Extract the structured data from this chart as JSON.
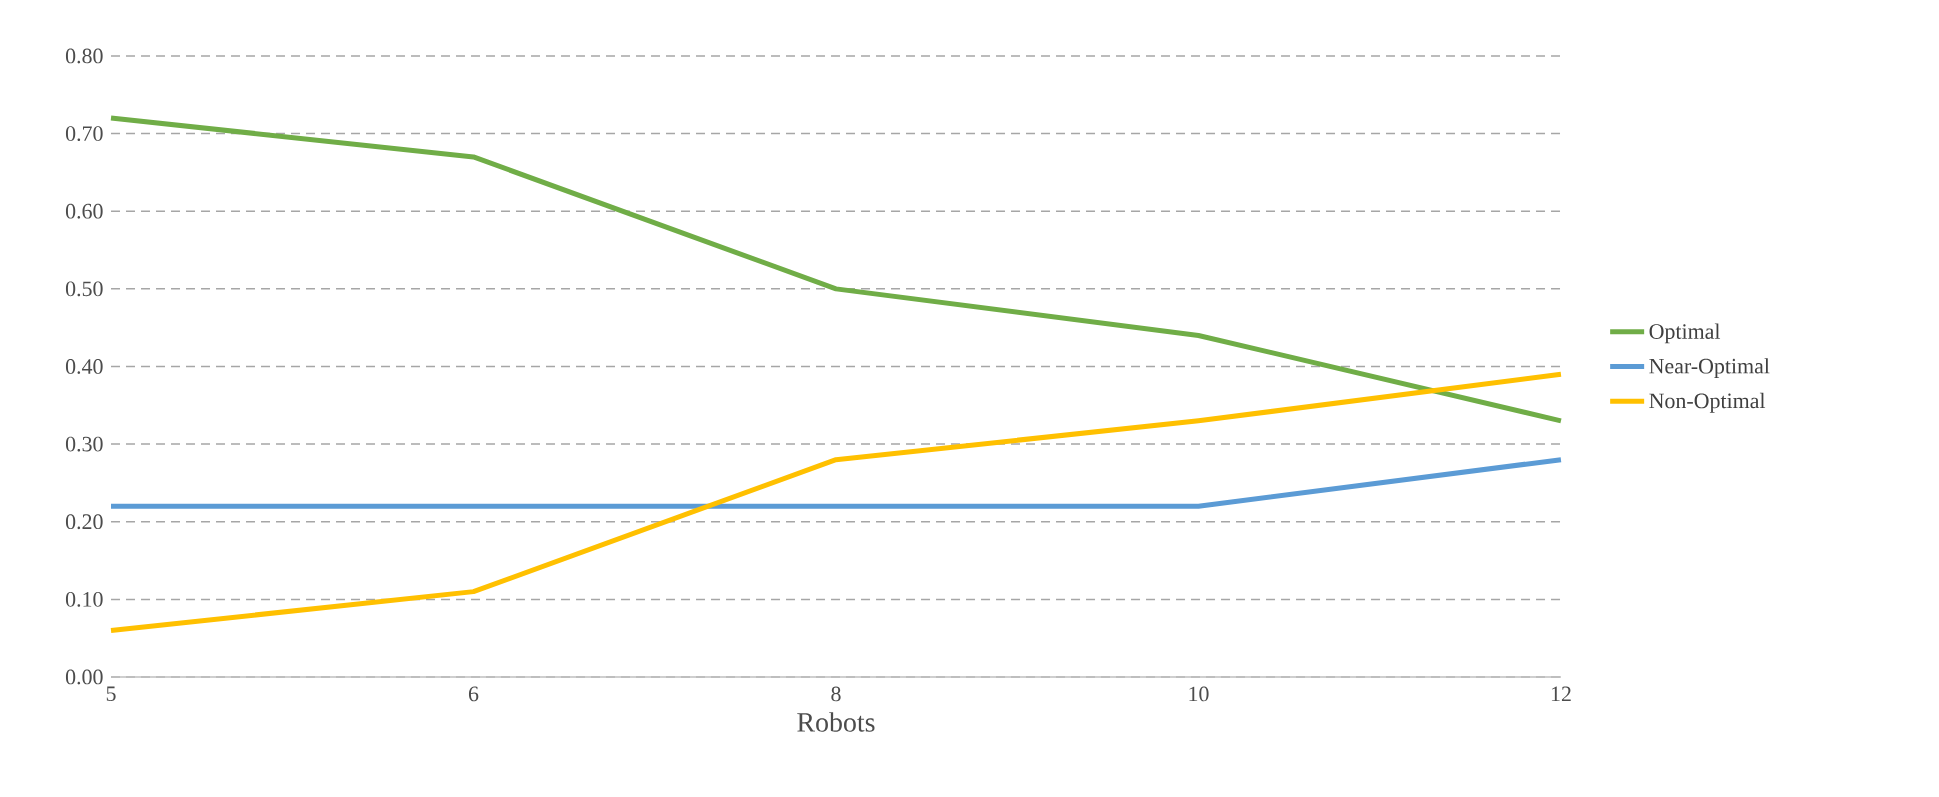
{
  "chart_data": {
    "type": "line",
    "xlabel": "Robots",
    "categories": [
      "5",
      "6",
      "8",
      "10",
      "12"
    ],
    "series": [
      {
        "name": "Optimal",
        "color": "#70ad47",
        "values": [
          0.72,
          0.67,
          0.5,
          0.44,
          0.33
        ]
      },
      {
        "name": "Near-Optimal",
        "color": "#5b9bd5",
        "values": [
          0.22,
          0.22,
          0.22,
          0.22,
          0.28
        ]
      },
      {
        "name": "Non-Optimal",
        "color": "#ffc000",
        "values": [
          0.06,
          0.11,
          0.28,
          0.33,
          0.39
        ]
      }
    ],
    "ylim": [
      0,
      0.8
    ],
    "yticks": [
      {
        "value": 0,
        "label": "0.00"
      },
      {
        "value": 0.1,
        "label": "0.10"
      },
      {
        "value": 0.2,
        "label": "0.20"
      },
      {
        "value": 0.3,
        "label": "0.30"
      },
      {
        "value": 0.4,
        "label": "0.40"
      },
      {
        "value": 0.5,
        "label": "0.50"
      },
      {
        "value": 0.6,
        "label": "0.60"
      },
      {
        "value": 0.7,
        "label": "0.70"
      },
      {
        "value": 0.8,
        "label": "0.80"
      }
    ],
    "grid": "y",
    "legend": "right",
    "marker": "none",
    "line_style": "solid"
  }
}
